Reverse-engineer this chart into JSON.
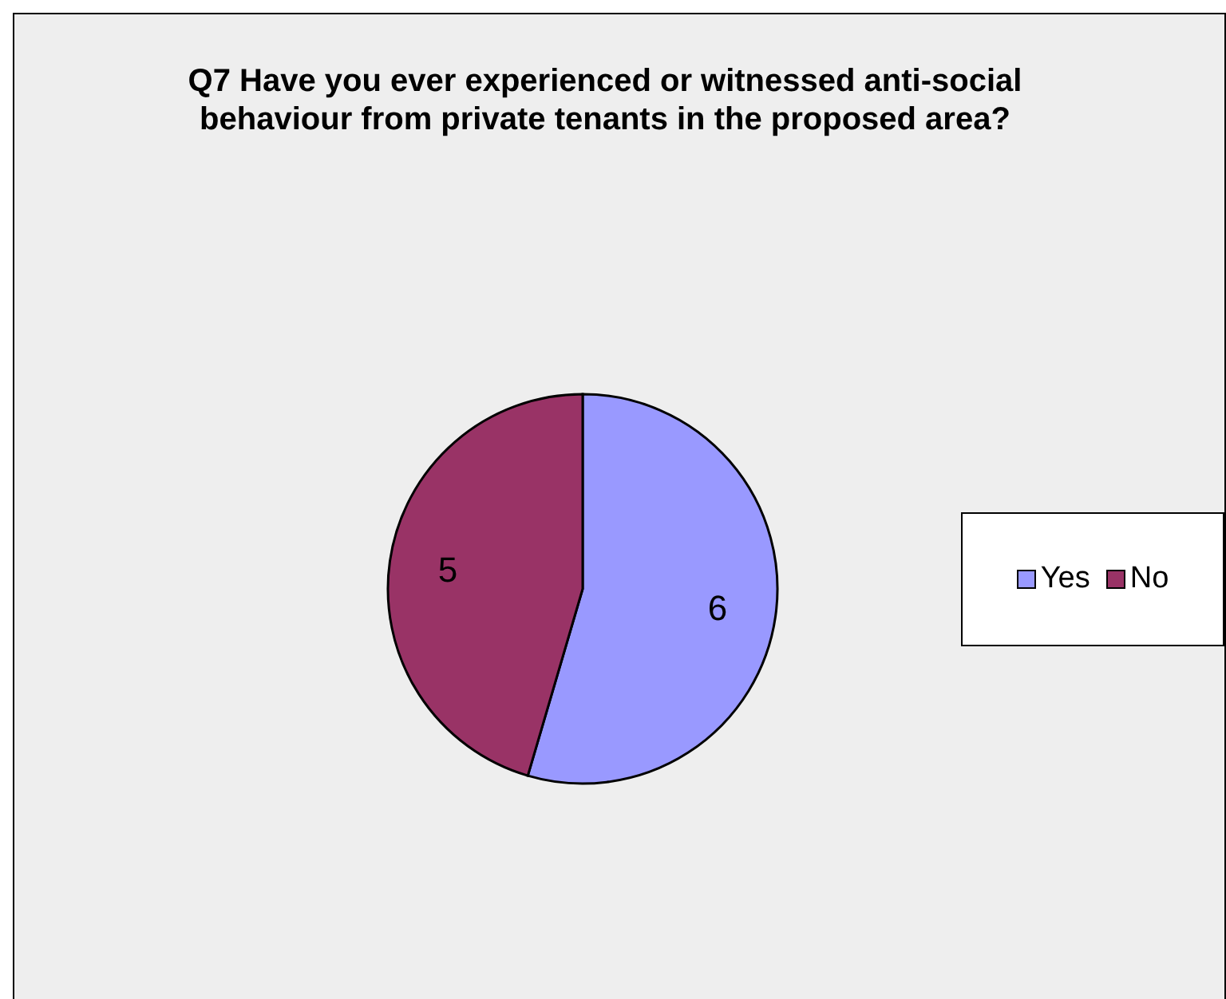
{
  "chart_data": {
    "type": "pie",
    "title": "Q7 Have you ever experienced or witnessed anti-social behaviour from private tenants in the proposed area?",
    "categories": [
      "Yes",
      "No"
    ],
    "values": [
      6,
      5
    ],
    "colors": [
      "#9999ff",
      "#993366"
    ],
    "data_labels": true,
    "legend": "right"
  }
}
